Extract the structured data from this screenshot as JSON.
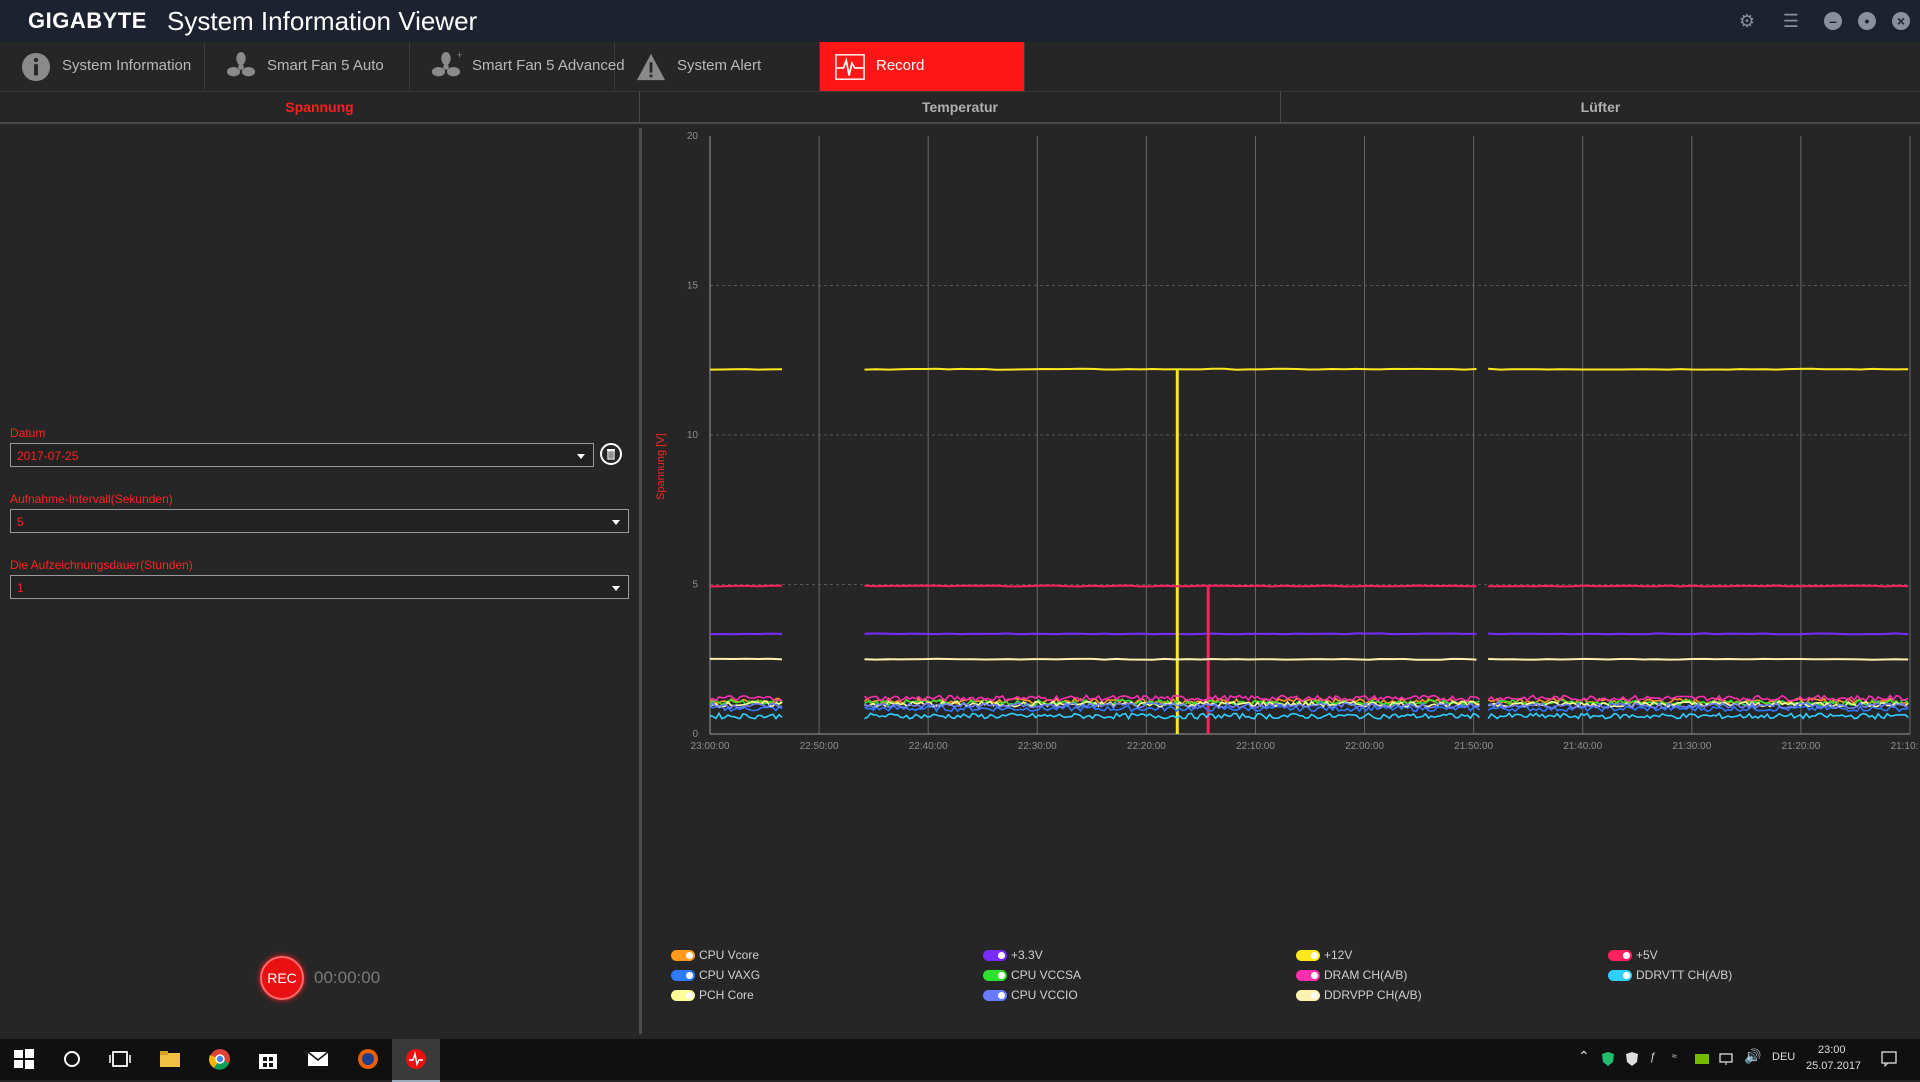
{
  "titlebar": {
    "brand": "GIGABYTE",
    "title": "System Information Viewer",
    "controls": [
      "gear-icon",
      "list-icon",
      "minimize-icon",
      "restore-icon",
      "close-icon"
    ]
  },
  "tabs": [
    {
      "label": "System Information",
      "icon": "info-icon"
    },
    {
      "label": "Smart Fan 5 Auto",
      "icon": "fan-icon"
    },
    {
      "label": "Smart Fan 5 Advanced",
      "icon": "fan-plus-icon"
    },
    {
      "label": "System Alert",
      "icon": "warning-icon"
    },
    {
      "label": "Record",
      "icon": "pulse-icon",
      "active": true
    }
  ],
  "subtabs": [
    {
      "label": "Spannung",
      "active": true
    },
    {
      "label": "Temperatur"
    },
    {
      "label": "Lüfter"
    }
  ],
  "form": {
    "date_label": "Datum",
    "date_value": "2017-07-25",
    "interval_label": "Aufnahme-Intervall(Sekunden)",
    "interval_value": "5",
    "duration_label": "Die Aufzeichnungsdauer(Stunden)",
    "duration_value": "1"
  },
  "record": {
    "button_label": "REC",
    "timer": "00:00:00"
  },
  "chart_data": {
    "type": "line",
    "ylabel": "Spannung [V]",
    "ylim": [
      0,
      20
    ],
    "yticks": [
      0,
      5,
      10,
      15,
      20
    ],
    "xticks": [
      "23:00:00",
      "22:50:00",
      "22:40:00",
      "22:30:00",
      "22:20:00",
      "22:10:00",
      "22:00:00",
      "21:50:00",
      "21:40:00",
      "21:30:00",
      "21:20:00",
      "21:10:00"
    ],
    "x_descending": true,
    "gaps": [
      [
        "22:53:10",
        "22:45:50"
      ],
      [
        "21:49:20",
        "21:48:40"
      ]
    ],
    "grid": true,
    "series": [
      {
        "name": "CPU Vcore",
        "color": "#ff9a1f",
        "value": 1.1
      },
      {
        "name": "+3.3V",
        "color": "#7a2cff",
        "value": 3.35
      },
      {
        "name": "+12V",
        "color": "#ffe81f",
        "value": 12.2,
        "spike_to_zero_at": "22:17:10"
      },
      {
        "name": "+5V",
        "color": "#ff2060",
        "value": 4.95,
        "spike_to_zero_at": "22:14:20"
      },
      {
        "name": "CPU VAXG",
        "color": "#2f7bff",
        "value": 0.85
      },
      {
        "name": "CPU VCCSA",
        "color": "#2fe02f",
        "value": 1.05
      },
      {
        "name": "DRAM CH(A/B)",
        "color": "#ff2fb0",
        "value": 1.2
      },
      {
        "name": "DDRVTT CH(A/B)",
        "color": "#2fcfff",
        "value": 0.6
      },
      {
        "name": "PCH Core",
        "color": "#ffff9a",
        "value": 1.0
      },
      {
        "name": "CPU VCCIO",
        "color": "#6a7bff",
        "value": 0.95
      },
      {
        "name": "DDRVPP CH(A/B)",
        "color": "#fff2b0",
        "value": 2.5
      }
    ]
  },
  "taskbar": {
    "apps": [
      "windows-start-icon",
      "search-icon",
      "task-view-icon",
      "file-explorer-icon",
      "chrome-icon",
      "store-icon",
      "mail-icon",
      "firefox-icon",
      "gigabyte-siv-icon"
    ],
    "language": "DEU",
    "time": "23:00",
    "date": "25.07.2017"
  }
}
